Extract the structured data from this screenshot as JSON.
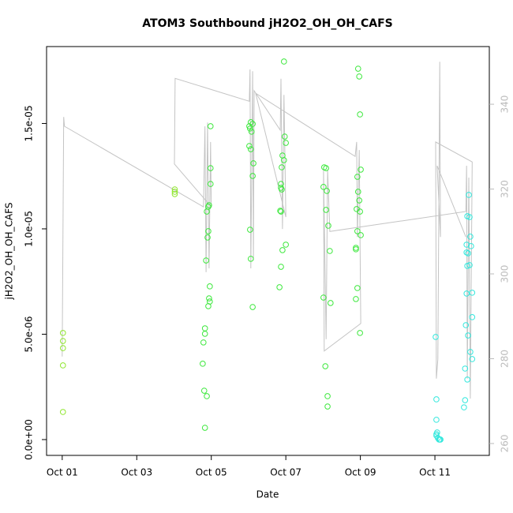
{
  "chart_data": {
    "type": "scatter",
    "title": "ATOM3 Southbound jH2O2_OH_OH_CAFS",
    "xlabel": "Date",
    "ylabel": "jH2O2_OH_OH_CAFS",
    "xlim": [
      -0.42,
      11.46
    ],
    "ylim": [
      -7.5e-07,
      1.865e-05
    ],
    "y2lim": [
      257.2,
      353.6
    ],
    "xticks": [
      {
        "value": 0,
        "label": "Oct 01"
      },
      {
        "value": 2,
        "label": "Oct 03"
      },
      {
        "value": 4,
        "label": "Oct 05"
      },
      {
        "value": 6,
        "label": "Oct 07"
      },
      {
        "value": 8,
        "label": "Oct 09"
      },
      {
        "value": 10,
        "label": "Oct 11"
      }
    ],
    "yticks": [
      {
        "value": 0,
        "label": "0.0e+00"
      },
      {
        "value": 5e-06,
        "label": "5.0e-06"
      },
      {
        "value": 1e-05,
        "label": "1.0e-05"
      },
      {
        "value": 1.5e-05,
        "label": "1.5e-05"
      }
    ],
    "y2ticks": [
      260,
      280,
      300,
      320,
      340
    ],
    "y2color": "#bbbbbb",
    "series": [
      {
        "color": "#8fe62e",
        "x": [
          0.02,
          0.02,
          0.02,
          0.02,
          0.02,
          3.02,
          3.02,
          3.02
        ],
        "values": [
          5.06e-06,
          4.68e-06,
          4.34e-06,
          3.52e-06,
          1.31e-06,
          1.187e-05,
          1.176e-05,
          1.165e-05
        ]
      },
      {
        "color": "#3de83d",
        "x": [
          3.98,
          3.98,
          3.98,
          3.94,
          3.92,
          3.88,
          3.92,
          3.9,
          3.86,
          3.96,
          3.94,
          3.96,
          3.92,
          3.83,
          3.83,
          3.79,
          3.77,
          3.81,
          3.88,
          3.83,
          5.02,
          5.06,
          5.11,
          5.04,
          5.02,
          5.06,
          5.08,
          5.13,
          5.11,
          5.04,
          5.06,
          5.11,
          5.95,
          5.97,
          6.0,
          5.91,
          5.95,
          5.89,
          5.87,
          5.89,
          5.85,
          5.87,
          5.83,
          5.87,
          6.0,
          5.91,
          5.87,
          7.03,
          7.08,
          7.01,
          7.1,
          7.08,
          7.14,
          7.18,
          7.2,
          7.01,
          7.06,
          7.12,
          7.12,
          7.94,
          7.97,
          7.99,
          7.92,
          8.01,
          7.94,
          7.97,
          7.9,
          7.99,
          7.92,
          8.01,
          7.88,
          7.88,
          7.92,
          7.88,
          7.99
        ],
        "values": [
          1.487e-05,
          1.288e-05,
          1.213e-05,
          1.112e-05,
          1.105e-05,
          1.082e-05,
          9.89e-06,
          9.59e-06,
          8.5e-06,
          7.27e-06,
          6.7e-06,
          6.55e-06,
          6.33e-06,
          5.28e-06,
          5.02e-06,
          4.61e-06,
          3.6e-06,
          2.32e-06,
          2.06e-06,
          5.6e-07,
          1.487e-05,
          1.506e-05,
          1.498e-05,
          1.476e-05,
          1.393e-05,
          1.378e-05,
          1.461e-05,
          1.311e-05,
          1.251e-05,
          9.96e-06,
          8.58e-06,
          6.29e-06,
          1.794e-05,
          1.438e-05,
          1.408e-05,
          1.348e-05,
          1.326e-05,
          1.292e-05,
          1.195e-05,
          1.187e-05,
          1.086e-05,
          1.082e-05,
          7.23e-06,
          8.2e-06,
          9.25e-06,
          8.99e-06,
          1.213e-05,
          1.292e-05,
          1.288e-05,
          1.199e-05,
          1.18e-05,
          1.09e-05,
          1.015e-05,
          8.95e-06,
          6.48e-06,
          6.74e-06,
          3.48e-06,
          2.06e-06,
          1.57e-06,
          1.76e-05,
          1.723e-05,
          1.543e-05,
          1.247e-05,
          1.281e-05,
          1.176e-05,
          1.135e-05,
          1.094e-05,
          1.082e-05,
          9.89e-06,
          9.7e-06,
          9.1e-06,
          9.03e-06,
          7.19e-06,
          6.67e-06,
          5.06e-06
        ]
      },
      {
        "color": "#33e8dd",
        "x": [
          10.02,
          10.04,
          10.04,
          10.06,
          10.04,
          10.08,
          10.11,
          10.13,
          10.15,
          10.04,
          10.91,
          10.87,
          10.93,
          10.85,
          10.97,
          10.89,
          10.85,
          10.95,
          10.87,
          10.93,
          10.85,
          11.0,
          10.83,
          10.89,
          10.81,
          10.95,
          10.87,
          11.0,
          10.81,
          10.78,
          11.0
        ],
        "values": [
          4.87e-06,
          1.91e-06,
          9.4e-07,
          3.4e-07,
          2.6e-07,
          7e-08,
          0,
          0,
          0,
          1.9e-07,
          1.161e-05,
          1.06e-05,
          1.056e-05,
          9.25e-06,
          9.18e-06,
          8.84e-06,
          8.88e-06,
          9.63e-06,
          8.24e-06,
          8.28e-06,
          6.93e-06,
          6.97e-06,
          5.43e-06,
          4.94e-06,
          3.37e-06,
          4.16e-06,
          2.85e-06,
          3.82e-06,
          1.87e-06,
          1.53e-06,
          5.81e-06
        ]
      },
      {
        "color": "#c4c4c4",
        "axis": "y2",
        "x": [
          0,
          0.04,
          0.06,
          3.79,
          3.83,
          3.86,
          3.9,
          3.94,
          3.98,
          4.0,
          3.01,
          3.03,
          5.02,
          5.04,
          5.06,
          5.11,
          5.13,
          5.15,
          5.85,
          5.87,
          5.91,
          5.95,
          6.0,
          5.19,
          7.86,
          7.9,
          7.92,
          7.97,
          8.01,
          7.03,
          7.01,
          7.08,
          7.12,
          7.18,
          10.83,
          10.85,
          10.87,
          10.91,
          10.95,
          11.0,
          10.02,
          10.04,
          10.08,
          10.13,
          10.15,
          10.06,
          10.83
        ],
        "values": [
          280.5,
          337.0,
          334.8,
          315.8,
          334.8,
          300.4,
          335.7,
          301.3,
          331.1,
          315.8,
          325.9,
          346.1,
          340.7,
          348.2,
          301.3,
          347.8,
          303.2,
          343.2,
          333.9,
          346.0,
          310.6,
          342.2,
          313.4,
          342.6,
          327.7,
          331.1,
          308.7,
          329.2,
          288.3,
          281.8,
          324.6,
          284.6,
          324.6,
          310.0,
          314.7,
          325.5,
          275.3,
          322.7,
          270.6,
          326.4,
          331.1,
          275.3,
          279.9,
          350.0,
          308.7,
          325.5,
          308.7
        ]
      }
    ]
  }
}
